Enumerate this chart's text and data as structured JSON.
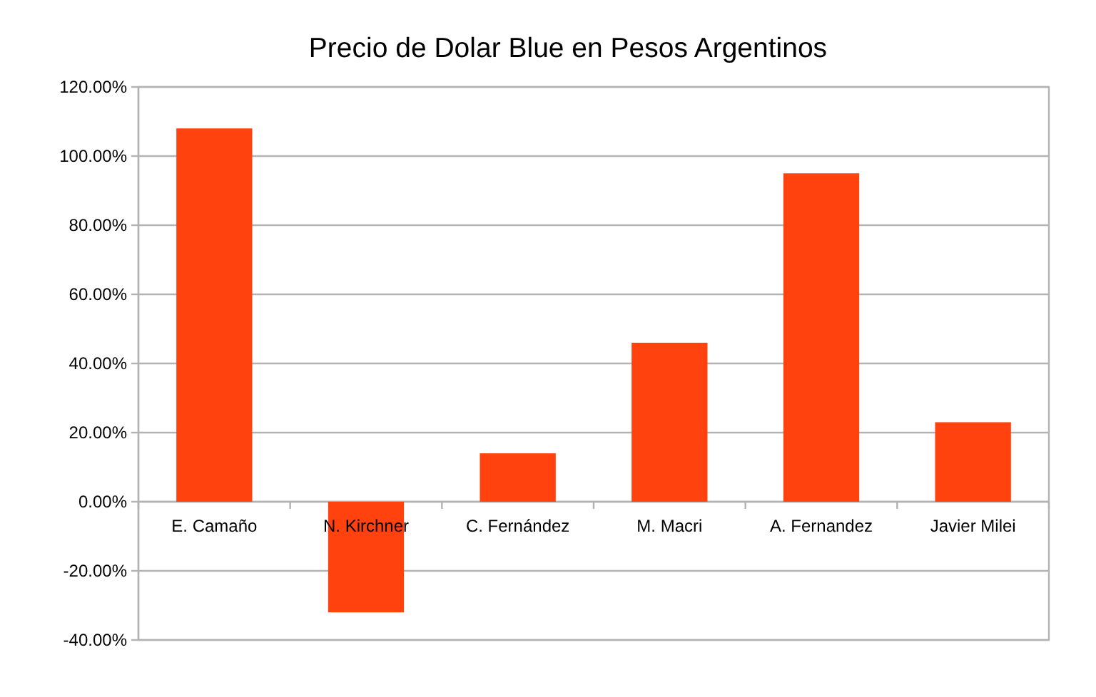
{
  "chart_data": {
    "type": "bar",
    "title": "Precio de Dolar Blue en Pesos Argentinos",
    "categories": [
      "E. Camaño",
      "N. Kirchner",
      "C. Fernández",
      "M. Macri",
      "A. Fernandez",
      "Javier Milei"
    ],
    "values": [
      108,
      -32,
      14,
      46,
      95,
      23
    ],
    "color": "#ff420e",
    "ylim": [
      -40,
      120
    ],
    "yticks": [
      {
        "value": -40,
        "label": "-40.00%"
      },
      {
        "value": -20,
        "label": "-20.00%"
      },
      {
        "value": 0,
        "label": "0.00%"
      },
      {
        "value": 20,
        "label": "20.00%"
      },
      {
        "value": 40,
        "label": "40.00%"
      },
      {
        "value": 60,
        "label": "60.00%"
      },
      {
        "value": 80,
        "label": "80.00%"
      },
      {
        "value": 100,
        "label": "100.00%"
      },
      {
        "value": 120,
        "label": "120.00%"
      }
    ],
    "grid": "y"
  }
}
